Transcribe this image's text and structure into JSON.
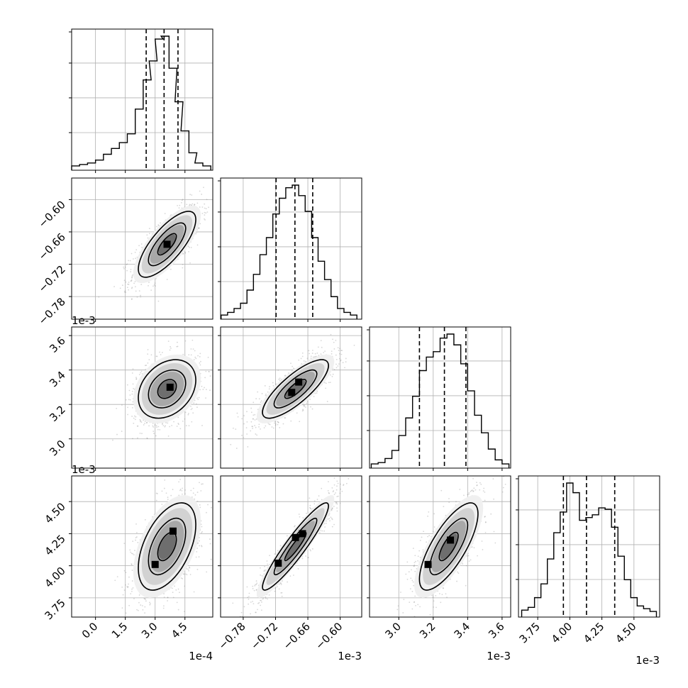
{
  "chart_data": {
    "type": "corner",
    "grid": true,
    "colors": {
      "line": "#000000",
      "grid": "#b0b0b0",
      "points": "#8c8c8c"
    },
    "parameters": [
      {
        "index": 0,
        "offset_label": "1e-4",
        "range": [
          -1.2,
          5.9
        ],
        "ticks": [
          0.0,
          1.5,
          3.0,
          4.5
        ],
        "tick_labels": [
          "0.0",
          "1.5",
          "3.0",
          "4.5"
        ],
        "quantiles": [
          2.55,
          3.45,
          4.15
        ]
      },
      {
        "index": 1,
        "offset_label": "1e-3",
        "range": [
          -0.822,
          -0.56
        ],
        "ticks": [
          -0.78,
          -0.72,
          -0.66,
          -0.6
        ],
        "tick_labels": [
          "−0.78",
          "−0.72",
          "−0.66",
          "−0.60"
        ],
        "quantiles": [
          -0.719,
          -0.684,
          -0.651
        ]
      },
      {
        "index": 2,
        "offset_label": "1e-3",
        "range": [
          2.83,
          3.65
        ],
        "ticks": [
          3.0,
          3.2,
          3.4,
          3.6
        ],
        "tick_labels": [
          "3.0",
          "3.2",
          "3.4",
          "3.6"
        ],
        "quantiles": [
          3.12,
          3.265,
          3.39
        ]
      },
      {
        "index": 3,
        "offset_label": "1e-3",
        "range": [
          3.6,
          4.7
        ],
        "ticks": [
          3.75,
          4.0,
          4.25,
          4.5
        ],
        "tick_labels": [
          "3.75",
          "4.00",
          "4.25",
          "4.50"
        ],
        "quantiles": [
          3.95,
          4.13,
          4.35
        ]
      }
    ],
    "histograms": [
      {
        "param": 0,
        "x": [
          -1.0,
          -0.6,
          -0.2,
          0.2,
          0.6,
          1.0,
          1.4,
          1.8,
          2.2,
          2.6,
          2.9,
          3.2,
          3.5,
          3.9,
          4.2,
          4.5,
          4.9,
          5.2,
          5.6
        ],
        "counts": [
          1,
          2,
          3,
          5,
          9,
          13,
          17,
          23,
          40,
          60,
          73,
          88,
          90,
          68,
          45,
          25,
          10,
          3,
          1
        ]
      },
      {
        "param": 1,
        "x": [
          -0.815,
          -0.803,
          -0.791,
          -0.779,
          -0.767,
          -0.755,
          -0.743,
          -0.731,
          -0.719,
          -0.707,
          -0.695,
          -0.683,
          -0.671,
          -0.659,
          -0.647,
          -0.635,
          -0.623,
          -0.611,
          -0.599,
          -0.587,
          -0.575
        ],
        "counts": [
          1,
          3,
          6,
          10,
          20,
          32,
          47,
          60,
          78,
          90,
          98,
          100,
          92,
          80,
          60,
          42,
          28,
          15,
          6,
          3,
          1
        ]
      },
      {
        "param": 2,
        "x": [
          2.86,
          2.9,
          2.94,
          2.98,
          3.02,
          3.06,
          3.1,
          3.14,
          3.18,
          3.22,
          3.26,
          3.3,
          3.34,
          3.38,
          3.42,
          3.46,
          3.5,
          3.54,
          3.58,
          3.62
        ],
        "counts": [
          1,
          2,
          5,
          11,
          22,
          35,
          51,
          70,
          80,
          84,
          94,
          97,
          89,
          75,
          55,
          37,
          24,
          12,
          4,
          1
        ]
      },
      {
        "param": 3,
        "x": [
          3.65,
          3.7,
          3.75,
          3.8,
          3.85,
          3.9,
          3.95,
          4.0,
          4.05,
          4.1,
          4.15,
          4.2,
          4.25,
          4.3,
          4.35,
          4.4,
          4.45,
          4.5,
          4.55,
          4.6,
          4.65
        ],
        "counts": [
          3,
          5,
          12,
          22,
          40,
          59,
          74,
          95,
          88,
          68,
          70,
          72,
          77,
          76,
          63,
          42,
          25,
          12,
          6,
          4,
          2
        ]
      }
    ],
    "pairs": [
      {
        "x_param": 0,
        "y_param": 1,
        "mean": [
          3.6,
          -0.683
        ],
        "std": [
          0.85,
          0.036
        ],
        "corr": 0.75,
        "cells": [
          [
            3.6,
            -0.683
          ]
        ]
      },
      {
        "x_param": 0,
        "y_param": 2,
        "mean": [
          3.6,
          3.29
        ],
        "std": [
          0.85,
          0.1
        ],
        "corr": 0.3,
        "cells": [
          [
            3.75,
            3.3
          ]
        ]
      },
      {
        "x_param": 1,
        "y_param": 2,
        "mean": [
          -0.683,
          3.29
        ],
        "std": [
          0.036,
          0.1
        ],
        "corr": 0.8,
        "cells": [
          [
            -0.677,
            3.33
          ],
          [
            -0.69,
            3.27
          ]
        ]
      },
      {
        "x_param": 0,
        "y_param": 3,
        "mean": [
          3.6,
          4.15
        ],
        "std": [
          0.85,
          0.2
        ],
        "corr": 0.5,
        "cells": [
          [
            3.0,
            4.01
          ],
          [
            3.9,
            4.27
          ]
        ]
      },
      {
        "x_param": 1,
        "y_param": 3,
        "mean": [
          -0.683,
          4.15
        ],
        "std": [
          0.036,
          0.2
        ],
        "corr": 0.93,
        "cells": [
          [
            -0.715,
            4.02
          ],
          [
            -0.683,
            4.22
          ],
          [
            -0.67,
            4.25
          ]
        ]
      },
      {
        "x_param": 2,
        "y_param": 3,
        "mean": [
          3.29,
          4.15
        ],
        "std": [
          0.1,
          0.2
        ],
        "corr": 0.75,
        "cells": [
          [
            3.17,
            4.01
          ],
          [
            3.3,
            4.2
          ]
        ]
      }
    ]
  }
}
